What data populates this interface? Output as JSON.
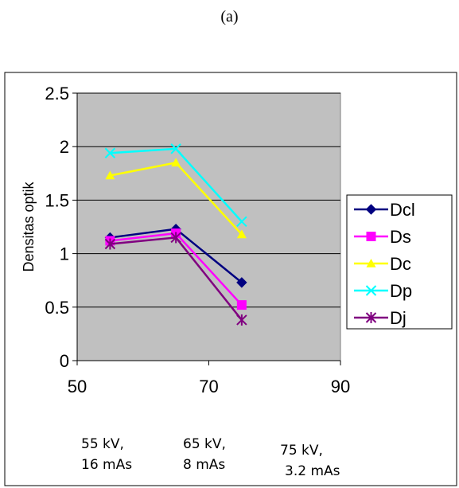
{
  "caption": "(a)",
  "colors": {
    "plot_background": "#c0c0c0",
    "frame": "#000000",
    "gridline": "#000000"
  },
  "chart_data": {
    "type": "line",
    "title": "",
    "xlabel": "",
    "ylabel": "Densitas optik",
    "xlim": [
      50,
      90
    ],
    "ylim": [
      0,
      2.5
    ],
    "x_ticks": [
      50,
      70,
      90
    ],
    "y_ticks": [
      0,
      0.5,
      1,
      1.5,
      2,
      2.5
    ],
    "x_tick_labels": [
      "50",
      "70",
      "90"
    ],
    "y_tick_labels": [
      "0",
      "0.5",
      "1",
      "1.5",
      "2",
      "2.5"
    ],
    "grid": "horizontal",
    "legend_position": "right",
    "series": [
      {
        "name": "Dcl",
        "color": "#000080",
        "marker": "diamond",
        "x": [
          55,
          65,
          75
        ],
        "y": [
          1.15,
          1.23,
          0.73
        ]
      },
      {
        "name": "Ds",
        "color": "#ff00ff",
        "marker": "square",
        "x": [
          55,
          65,
          75
        ],
        "y": [
          1.12,
          1.19,
          0.52
        ]
      },
      {
        "name": "Dc",
        "color": "#ffff00",
        "marker": "triangle",
        "x": [
          55,
          65,
          75
        ],
        "y": [
          1.73,
          1.85,
          1.18
        ]
      },
      {
        "name": "Dp",
        "color": "#00ffff",
        "marker": "x",
        "x": [
          55,
          65,
          75
        ],
        "y": [
          1.94,
          1.98,
          1.3
        ]
      },
      {
        "name": "Dj",
        "color": "#800080",
        "marker": "star",
        "x": [
          55,
          65,
          75
        ],
        "y": [
          1.09,
          1.15,
          0.38
        ]
      }
    ],
    "exposure_labels": [
      {
        "kv": "55 kV,",
        "mas": "16 mAs"
      },
      {
        "kv": "65 kV,",
        "mas": "8 mAs"
      },
      {
        "kv": "75 kV,",
        "mas": "3.2 mAs"
      }
    ]
  }
}
